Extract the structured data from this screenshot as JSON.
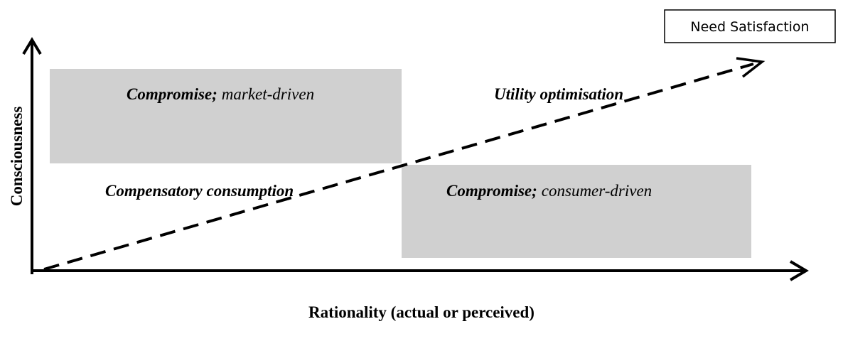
{
  "y_axis_label": "Consciousness",
  "x_axis_label": "Rationality (actual or perceived)",
  "box_label": "Need Satisfaction",
  "quadrants": [
    {
      "bold": "Compromise;",
      "italic": "market-driven"
    },
    {
      "bold": "Utility optimisation"
    },
    {
      "bold": "Compensatory consumption"
    },
    {
      "bold": "Compromise;",
      "italic": "consumer-driven"
    }
  ]
}
